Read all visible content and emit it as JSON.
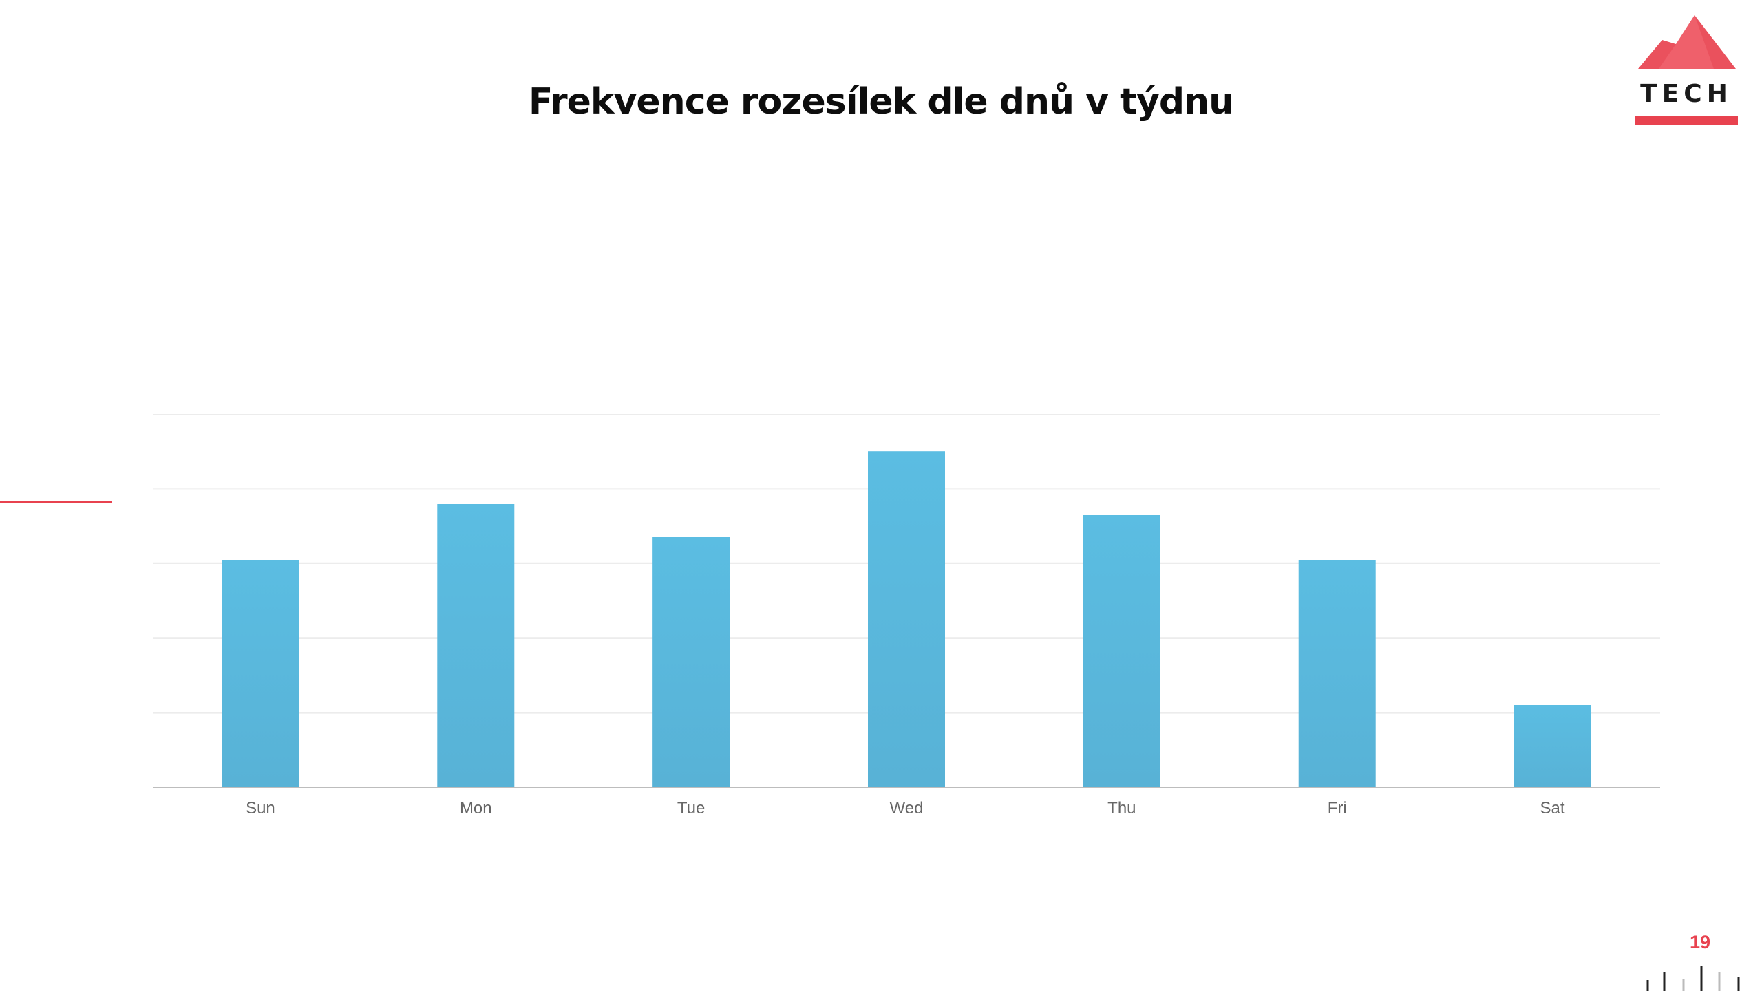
{
  "slide": {
    "title": "Frekvence rozesílek dle dnů v týdnu",
    "page_number": "19",
    "logo_text": "TECH"
  },
  "colors": {
    "accent": "#e8424f",
    "bar": "#5bbde2",
    "bar_bottom": "#58b2d6",
    "grid": "#ececec",
    "axis": "#bdbdbd",
    "tick_text": "#666666",
    "deco_dark": "#222222",
    "deco_light": "#bbbbbb"
  },
  "icons": {
    "logo": "tech-mountain-logo"
  },
  "chart_data": {
    "type": "bar",
    "categories": [
      "Sun",
      "Mon",
      "Tue",
      "Wed",
      "Thu",
      "Fri",
      "Sat"
    ],
    "values": [
      61,
      76,
      67,
      90,
      73,
      61,
      22
    ],
    "xlabel": "",
    "ylabel": "",
    "ylim": [
      0,
      100
    ],
    "grid": true,
    "legend": "none"
  }
}
